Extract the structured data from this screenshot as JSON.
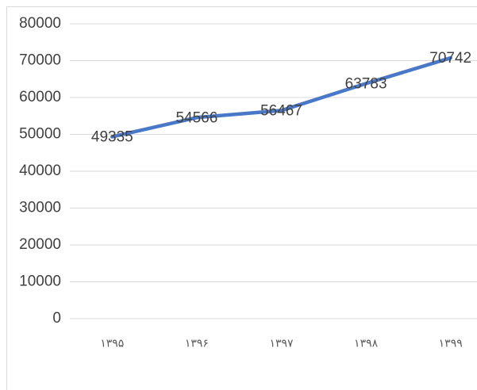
{
  "chart_data": {
    "type": "line",
    "categories": [
      "۱۳۹۵",
      "۱۳۹۶",
      "۱۳۹۷",
      "۱۳۹۸",
      "۱۳۹۹"
    ],
    "series": [
      {
        "name": "",
        "color": "#4a78c8",
        "values": [
          49335,
          54566,
          56467,
          63783,
          70742
        ]
      }
    ],
    "ylim": [
      0,
      80000
    ],
    "yticks": [
      0,
      10000,
      20000,
      30000,
      40000,
      50000,
      60000,
      70000,
      80000
    ],
    "grid": true
  }
}
